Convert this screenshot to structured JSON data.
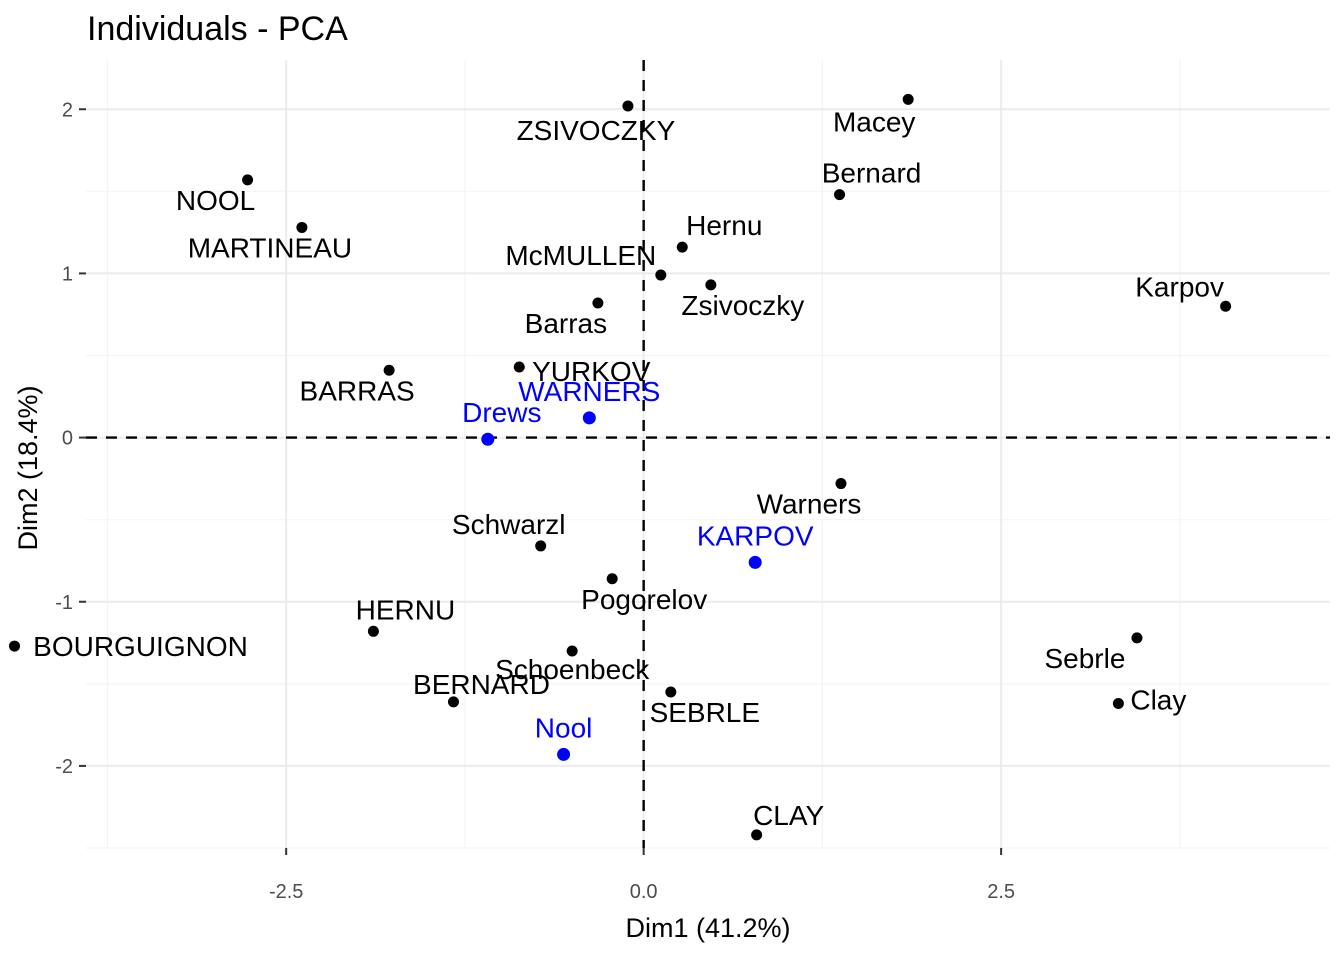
{
  "chart_data": {
    "type": "scatter",
    "title": "Individuals - PCA",
    "xlabel": "Dim1 (41.2%)",
    "ylabel": "Dim2 (18.4%)",
    "xlim": [
      -3.9,
      4.8
    ],
    "ylim": [
      -2.5,
      2.3
    ],
    "x_ticks": [
      -2.5,
      0.0,
      2.5
    ],
    "x_tick_labels": [
      "-2.5",
      "0.0",
      "2.5"
    ],
    "y_ticks": [
      -2,
      -1,
      0,
      1,
      2
    ],
    "y_tick_labels": [
      "-2",
      "-1",
      "0",
      "1",
      "2"
    ],
    "grid": true,
    "reference_lines": {
      "x": 0,
      "y": 0
    },
    "colors": {
      "active": "#000000",
      "supplementary": "#0000ff"
    },
    "series": [
      {
        "color": "#000000",
        "points": [
          {
            "label": "SEBRLE",
            "x": 0.19,
            "y": -1.55
          },
          {
            "label": "CLAY",
            "x": 0.79,
            "y": -2.42
          },
          {
            "label": "BERNARD",
            "x": -1.33,
            "y": -1.61
          },
          {
            "label": "YURKOV",
            "x": -0.87,
            "y": 0.43
          },
          {
            "label": "ZSIVOCZKY",
            "x": -0.11,
            "y": 2.02
          },
          {
            "label": "McMULLEN",
            "x": 0.12,
            "y": 0.99
          },
          {
            "label": "MARTINEAU",
            "x": -2.39,
            "y": 1.28
          },
          {
            "label": "HERNU",
            "x": -1.89,
            "y": -1.18
          },
          {
            "label": "BARRAS",
            "x": -1.78,
            "y": 0.41
          },
          {
            "label": "NOOL",
            "x": -2.77,
            "y": 1.57
          },
          {
            "label": "BOURGUIGNON",
            "x": -4.4,
            "y": -1.27
          },
          {
            "label": "Sebrle",
            "x": 3.45,
            "y": -1.22
          },
          {
            "label": "Clay",
            "x": 3.32,
            "y": -1.62
          },
          {
            "label": "Karpov",
            "x": 4.07,
            "y": 0.8
          },
          {
            "label": "Macey",
            "x": 1.85,
            "y": 2.06
          },
          {
            "label": "Warners",
            "x": 1.38,
            "y": -0.28
          },
          {
            "label": "Zsivoczky",
            "x": 0.47,
            "y": 0.93
          },
          {
            "label": "Hernu",
            "x": 0.27,
            "y": 1.16
          },
          {
            "label": "Bernard",
            "x": 1.37,
            "y": 1.48
          },
          {
            "label": "Schwarzl",
            "x": -0.72,
            "y": -0.66
          },
          {
            "label": "Pogorelov",
            "x": -0.22,
            "y": -0.86
          },
          {
            "label": "Schoenbeck",
            "x": -0.5,
            "y": -1.3
          },
          {
            "label": "Barras",
            "x": -0.32,
            "y": 0.82
          }
        ]
      },
      {
        "color": "#0000ff",
        "points": [
          {
            "label": "KARPOV",
            "x": 0.78,
            "y": -0.76
          },
          {
            "label": "WARNERS",
            "x": -0.38,
            "y": 0.12
          },
          {
            "label": "Nool",
            "x": -0.56,
            "y": -1.93
          },
          {
            "label": "Drews",
            "x": -1.09,
            "y": -0.01
          }
        ]
      }
    ]
  }
}
